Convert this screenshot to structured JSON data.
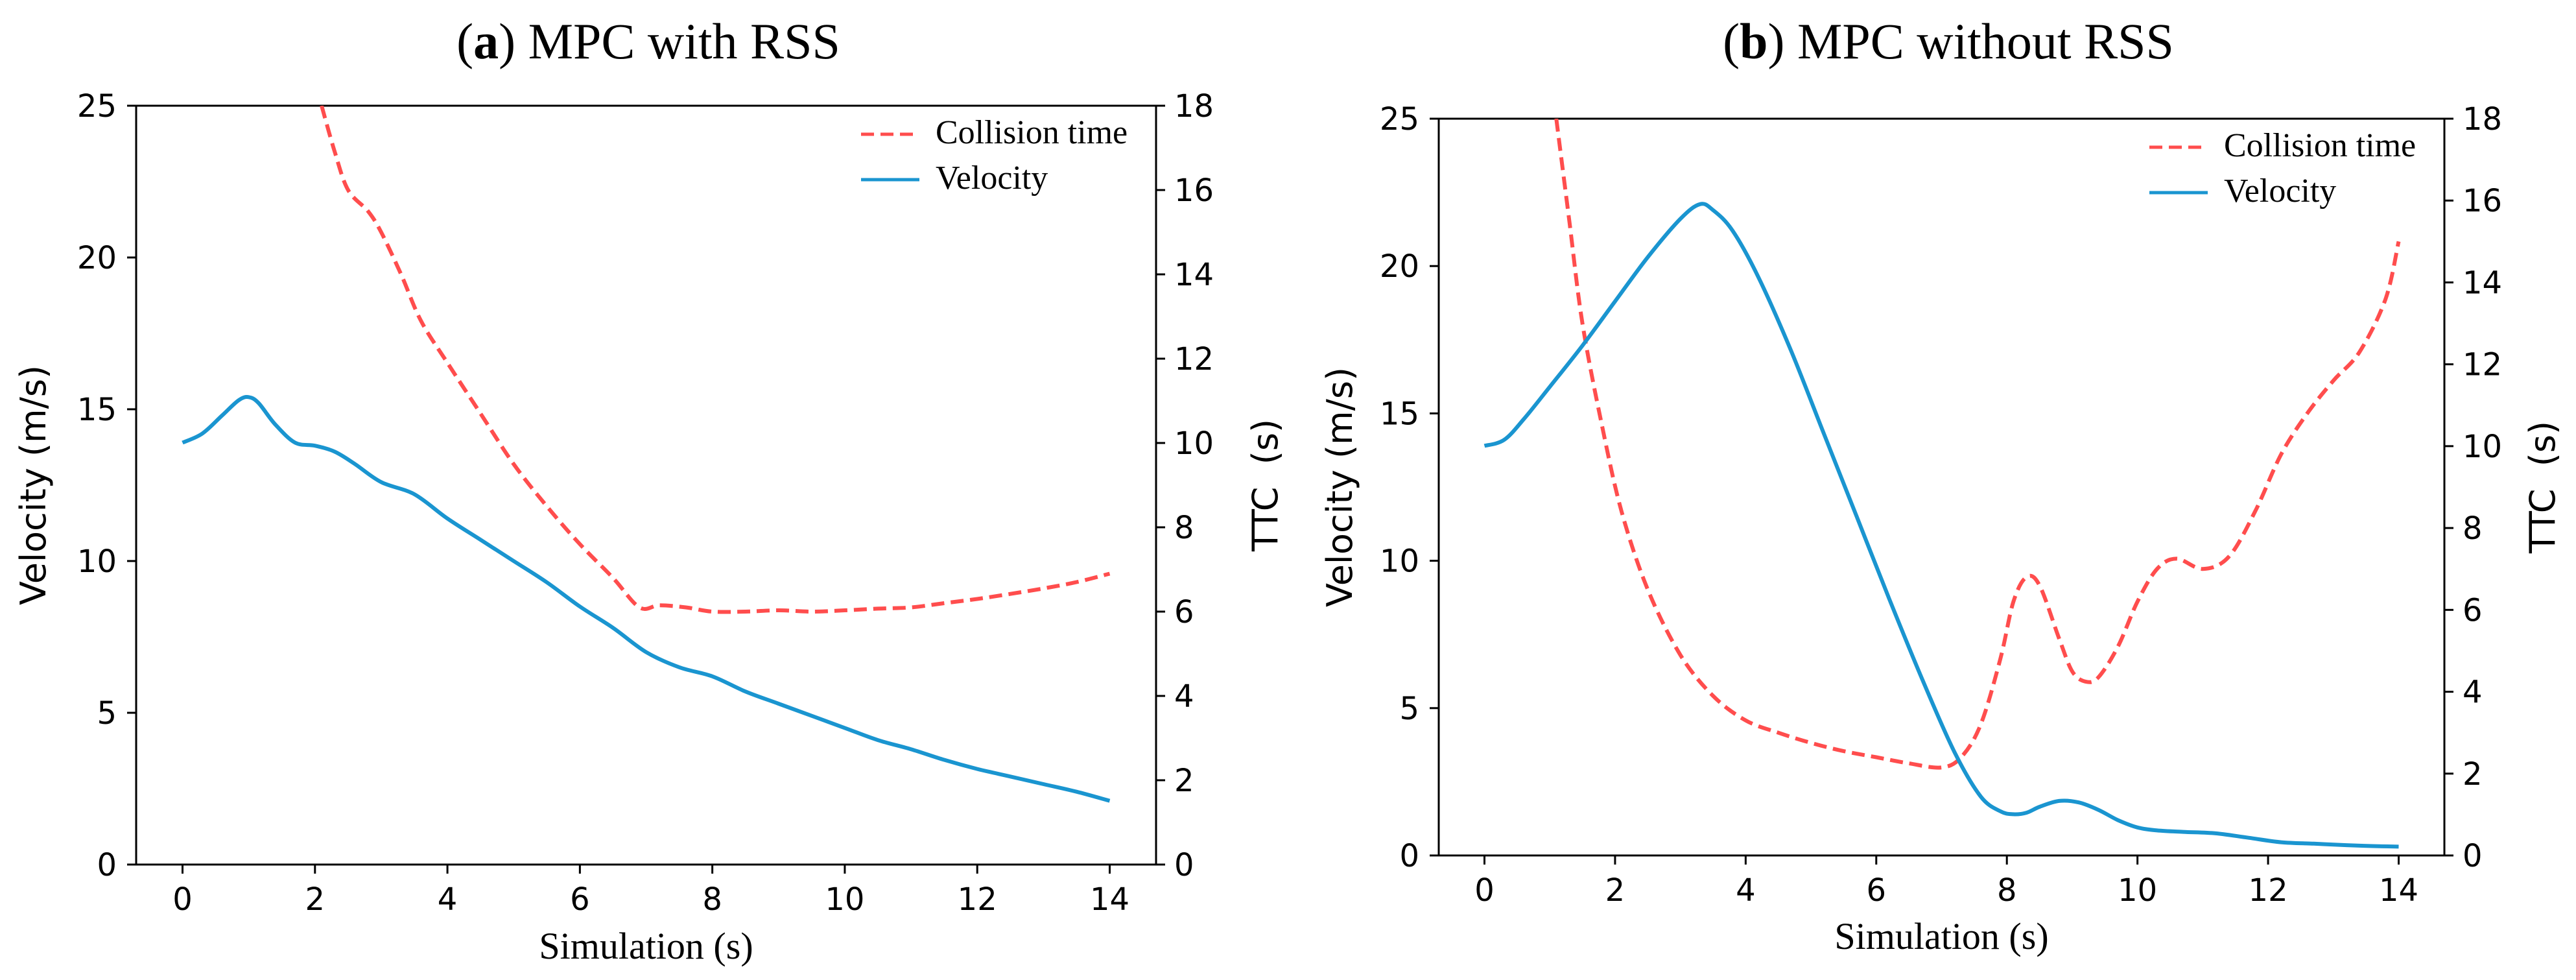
{
  "chart_data": [
    {
      "type": "line",
      "panel_letter": "a",
      "title": "MPC with RSS",
      "xlabel": "Simulation (s)",
      "ylabel_left": "Velocity (m/s)",
      "ylabel_right": "TTC  (s)",
      "xlim": [
        -0.7,
        14.7
      ],
      "ylim_left": [
        0,
        25
      ],
      "ylim_right": [
        0,
        18
      ],
      "x_ticks": [
        0,
        2,
        4,
        6,
        8,
        10,
        12,
        14
      ],
      "y_left_ticks": [
        0,
        5,
        10,
        15,
        20,
        25
      ],
      "y_right_ticks": [
        0,
        2,
        4,
        6,
        8,
        10,
        12,
        14,
        16,
        18
      ],
      "grid": false,
      "legend_position": "top-right",
      "series": [
        {
          "name": "Collision time",
          "axis": "right",
          "color": "#ff4d4d",
          "dash": "dashed",
          "x": [
            2.1,
            2.3,
            2.5,
            2.8,
            3.0,
            3.3,
            3.6,
            4.0,
            4.5,
            5.0,
            5.5,
            6.0,
            6.5,
            6.9,
            7.2,
            7.6,
            8.0,
            8.5,
            9.0,
            9.5,
            10.0,
            10.5,
            11.0,
            11.5,
            12.0,
            12.5,
            13.0,
            13.5,
            14.0
          ],
          "values": [
            18.0,
            16.9,
            16.0,
            15.5,
            15.0,
            14.0,
            12.9,
            11.9,
            10.7,
            9.5,
            8.5,
            7.6,
            6.8,
            6.1,
            6.15,
            6.1,
            6.0,
            6.0,
            6.03,
            6.0,
            6.03,
            6.07,
            6.1,
            6.2,
            6.3,
            6.42,
            6.55,
            6.7,
            6.9
          ]
        },
        {
          "name": "Velocity",
          "axis": "left",
          "color": "#1a95d0",
          "dash": "solid",
          "x": [
            0,
            0.3,
            0.6,
            0.85,
            1.0,
            1.15,
            1.4,
            1.7,
            2.0,
            2.3,
            2.6,
            3.0,
            3.5,
            4.0,
            4.5,
            5.0,
            5.5,
            6.0,
            6.5,
            7.0,
            7.5,
            8.0,
            8.5,
            9.0,
            9.5,
            10.0,
            10.5,
            11.0,
            11.5,
            12.0,
            12.5,
            13.0,
            13.5,
            14.0
          ],
          "values": [
            13.9,
            14.2,
            14.8,
            15.3,
            15.4,
            15.2,
            14.5,
            13.9,
            13.8,
            13.6,
            13.2,
            12.6,
            12.2,
            11.4,
            10.7,
            10.0,
            9.3,
            8.5,
            7.8,
            7.0,
            6.5,
            6.2,
            5.7,
            5.3,
            4.9,
            4.5,
            4.1,
            3.8,
            3.45,
            3.15,
            2.9,
            2.65,
            2.4,
            2.1
          ]
        }
      ]
    },
    {
      "type": "line",
      "panel_letter": "b",
      "title": "MPC without RSS",
      "xlabel": "Simulation (s)",
      "ylabel_left": "Velocity (m/s)",
      "ylabel_right": "TTC  (s)",
      "xlim": [
        -0.7,
        14.7
      ],
      "ylim_left": [
        0,
        25
      ],
      "ylim_right": [
        0,
        18
      ],
      "x_ticks": [
        0,
        2,
        4,
        6,
        8,
        10,
        12,
        14
      ],
      "y_left_ticks": [
        0,
        5,
        10,
        15,
        20,
        25
      ],
      "y_right_ticks": [
        0,
        2,
        4,
        6,
        8,
        10,
        12,
        14,
        16,
        18
      ],
      "grid": false,
      "legend_position": "top-right",
      "series": [
        {
          "name": "Collision time",
          "axis": "right",
          "color": "#ff4d4d",
          "dash": "dashed",
          "x": [
            1.1,
            1.3,
            1.5,
            1.8,
            2.1,
            2.5,
            3.0,
            3.5,
            4.0,
            4.5,
            5.0,
            5.5,
            6.0,
            6.5,
            7.0,
            7.3,
            7.6,
            7.9,
            8.1,
            8.3,
            8.5,
            8.8,
            9.0,
            9.2,
            9.4,
            9.7,
            10.0,
            10.3,
            10.6,
            11.0,
            11.4,
            11.8,
            12.2,
            12.6,
            13.0,
            13.4,
            13.8,
            14.0
          ],
          "values": [
            18.0,
            15.5,
            13.0,
            10.5,
            8.4,
            6.5,
            4.9,
            3.9,
            3.3,
            3.0,
            2.75,
            2.55,
            2.4,
            2.25,
            2.15,
            2.4,
            3.2,
            4.8,
            6.2,
            6.8,
            6.6,
            5.3,
            4.5,
            4.25,
            4.35,
            5.1,
            6.2,
            7.0,
            7.25,
            7.0,
            7.3,
            8.4,
            9.8,
            10.8,
            11.6,
            12.3,
            13.6,
            15.0
          ]
        },
        {
          "name": "Velocity",
          "axis": "left",
          "color": "#1a95d0",
          "dash": "solid",
          "x": [
            0,
            0.3,
            0.6,
            1.0,
            1.5,
            2.0,
            2.5,
            3.0,
            3.3,
            3.5,
            3.8,
            4.2,
            4.7,
            5.2,
            5.7,
            6.2,
            6.7,
            7.2,
            7.6,
            7.9,
            8.1,
            8.3,
            8.5,
            8.8,
            9.1,
            9.4,
            9.7,
            10.0,
            10.3,
            10.7,
            11.2,
            11.7,
            12.2,
            12.7,
            13.2,
            13.6,
            14.0
          ],
          "values": [
            13.9,
            14.1,
            14.8,
            15.9,
            17.3,
            18.8,
            20.3,
            21.6,
            22.1,
            21.9,
            21.2,
            19.6,
            17.1,
            14.3,
            11.5,
            8.7,
            6.0,
            3.5,
            2.0,
            1.5,
            1.4,
            1.45,
            1.65,
            1.85,
            1.8,
            1.55,
            1.2,
            0.95,
            0.85,
            0.8,
            0.75,
            0.6,
            0.45,
            0.4,
            0.35,
            0.32,
            0.3
          ]
        }
      ]
    }
  ]
}
